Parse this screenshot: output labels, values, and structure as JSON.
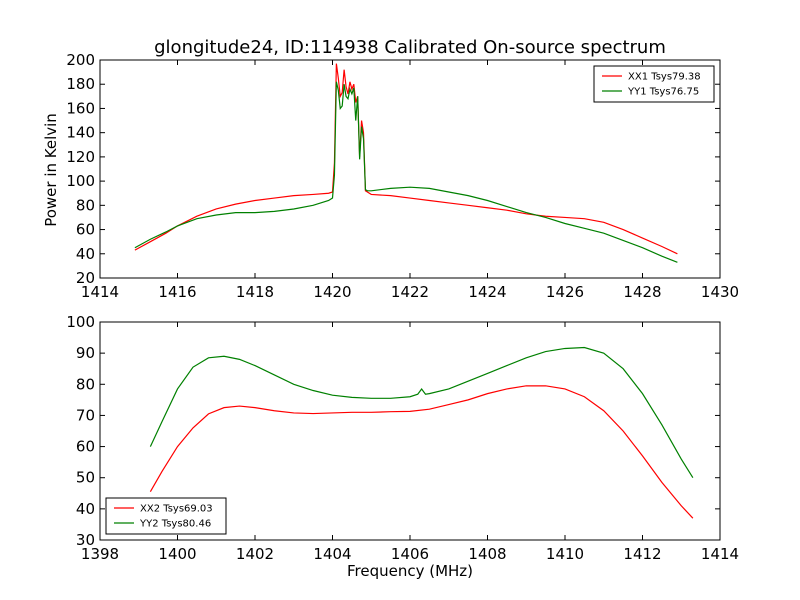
{
  "chart_data": [
    {
      "type": "line",
      "title": "glongitude24, ID:114938 Calibrated On-source spectrum",
      "xlabel": "",
      "ylabel": "Power in Kelvin",
      "xlim": [
        1414,
        1430
      ],
      "ylim": [
        20,
        200
      ],
      "xticks": [
        1414,
        1416,
        1418,
        1420,
        1422,
        1424,
        1426,
        1428,
        1430
      ],
      "yticks": [
        20,
        40,
        60,
        80,
        100,
        120,
        140,
        160,
        180,
        200
      ],
      "legend_position": "upper right",
      "series": [
        {
          "name": "XX1 Tsys79.38",
          "color": "#ff0000",
          "x": [
            1414.9,
            1415.3,
            1415.7,
            1416.0,
            1416.5,
            1417.0,
            1417.5,
            1418.0,
            1418.5,
            1419.0,
            1419.5,
            1419.9,
            1420.0,
            1420.05,
            1420.1,
            1420.15,
            1420.2,
            1420.25,
            1420.3,
            1420.35,
            1420.4,
            1420.45,
            1420.5,
            1420.55,
            1420.6,
            1420.65,
            1420.7,
            1420.75,
            1420.8,
            1420.85,
            1420.9,
            1421.0,
            1421.5,
            1422.0,
            1422.5,
            1423.0,
            1423.5,
            1424.0,
            1424.5,
            1425.0,
            1425.5,
            1426.0,
            1426.5,
            1427.0,
            1427.5,
            1428.0,
            1428.5,
            1428.9
          ],
          "y": [
            43,
            50,
            57,
            63,
            71,
            77,
            81,
            84,
            86,
            88,
            89,
            90,
            91,
            115,
            197,
            185,
            170,
            173,
            192,
            178,
            172,
            182,
            176,
            180,
            165,
            170,
            120,
            150,
            140,
            92,
            91,
            89,
            88,
            86,
            84,
            82,
            80,
            78,
            76,
            73,
            71,
            70,
            69,
            66,
            60,
            53,
            46,
            40
          ]
        },
        {
          "name": "YY1 Tsys76.75",
          "color": "#008000",
          "x": [
            1414.9,
            1415.3,
            1415.7,
            1416.0,
            1416.5,
            1417.0,
            1417.5,
            1418.0,
            1418.5,
            1419.0,
            1419.5,
            1419.9,
            1420.0,
            1420.05,
            1420.1,
            1420.15,
            1420.2,
            1420.25,
            1420.3,
            1420.35,
            1420.4,
            1420.45,
            1420.5,
            1420.55,
            1420.6,
            1420.65,
            1420.7,
            1420.75,
            1420.8,
            1420.85,
            1420.9,
            1421.0,
            1421.5,
            1422.0,
            1422.5,
            1423.0,
            1423.5,
            1424.0,
            1424.5,
            1425.0,
            1425.5,
            1426.0,
            1426.5,
            1427.0,
            1427.5,
            1428.0,
            1428.5,
            1428.9
          ],
          "y": [
            45,
            52,
            58,
            63,
            69,
            72,
            74,
            74,
            75,
            77,
            80,
            84,
            86,
            105,
            182,
            175,
            160,
            162,
            180,
            170,
            168,
            176,
            172,
            177,
            150,
            170,
            118,
            145,
            135,
            93,
            92,
            92,
            94,
            95,
            94,
            91,
            88,
            84,
            79,
            74,
            70,
            65,
            61,
            57,
            51,
            45,
            38,
            33
          ]
        }
      ]
    },
    {
      "type": "line",
      "title": "",
      "xlabel": "Frequency (MHz)",
      "ylabel": "",
      "xlim": [
        1398,
        1414
      ],
      "ylim": [
        30,
        100
      ],
      "xticks": [
        1398,
        1400,
        1402,
        1404,
        1406,
        1408,
        1410,
        1412,
        1414
      ],
      "yticks": [
        30,
        40,
        50,
        60,
        70,
        80,
        90,
        100
      ],
      "legend_position": "lower left",
      "series": [
        {
          "name": "XX2 Tsys69.03",
          "color": "#ff0000",
          "x": [
            1399.3,
            1399.6,
            1400.0,
            1400.4,
            1400.8,
            1401.2,
            1401.6,
            1402.0,
            1402.5,
            1403.0,
            1403.5,
            1404.0,
            1404.5,
            1405.0,
            1405.5,
            1406.0,
            1406.5,
            1407.0,
            1407.5,
            1408.0,
            1408.5,
            1409.0,
            1409.5,
            1410.0,
            1410.5,
            1411.0,
            1411.5,
            1412.0,
            1412.5,
            1413.0,
            1413.3
          ],
          "y": [
            45.5,
            52,
            60,
            66,
            70.5,
            72.5,
            73,
            72.5,
            71.5,
            70.8,
            70.6,
            70.8,
            71,
            71,
            71.2,
            71.3,
            72,
            73.5,
            75,
            77,
            78.5,
            79.5,
            79.5,
            78.5,
            76,
            71.5,
            65,
            57,
            48.5,
            41,
            37
          ]
        },
        {
          "name": "YY2 Tsys80.46",
          "color": "#008000",
          "x": [
            1399.3,
            1399.6,
            1400.0,
            1400.4,
            1400.8,
            1401.2,
            1401.6,
            1402.0,
            1402.5,
            1403.0,
            1403.5,
            1404.0,
            1404.5,
            1405.0,
            1405.5,
            1406.0,
            1406.2,
            1406.3,
            1406.4,
            1406.5,
            1407.0,
            1407.5,
            1408.0,
            1408.5,
            1409.0,
            1409.5,
            1410.0,
            1410.5,
            1411.0,
            1411.5,
            1412.0,
            1412.5,
            1413.0,
            1413.3
          ],
          "y": [
            60,
            68,
            78.5,
            85.5,
            88.5,
            89,
            88,
            86,
            83,
            80,
            78,
            76.5,
            75.8,
            75.5,
            75.5,
            76,
            76.8,
            78.5,
            76.8,
            77,
            78.5,
            81,
            83.5,
            86,
            88.5,
            90.5,
            91.5,
            91.8,
            90,
            85,
            77,
            67,
            56,
            50
          ]
        }
      ]
    }
  ]
}
